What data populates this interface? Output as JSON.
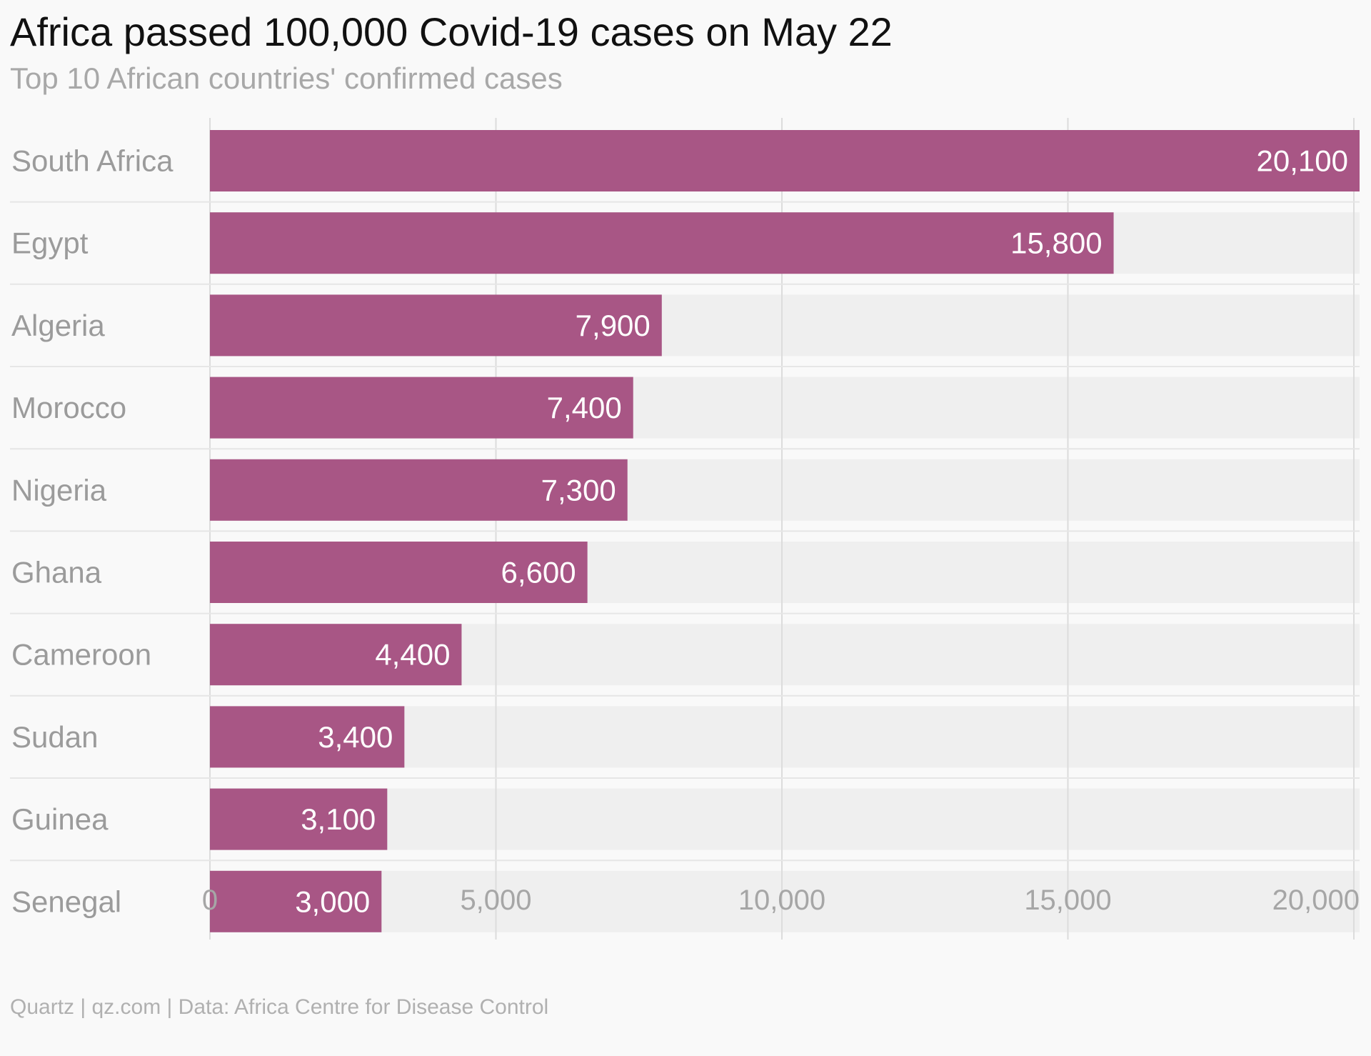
{
  "header": {
    "title": "Africa passed 100,000 Covid-19 cases on May 22",
    "subtitle": "Top 10 African countries' confirmed cases"
  },
  "footer": {
    "source": "Quartz | qz.com | Data: Africa Centre for Disease Control"
  },
  "colors": {
    "bar": "#a85685",
    "track": "#efefef",
    "grid": "#dcdcdc",
    "separator": "#e6e6e6"
  },
  "chart_data": {
    "type": "bar",
    "orientation": "horizontal",
    "title": "Africa passed 100,000 Covid-19 cases on May 22",
    "subtitle": "Top 10 African countries' confirmed cases",
    "categories": [
      "South Africa",
      "Egypt",
      "Algeria",
      "Morocco",
      "Nigeria",
      "Ghana",
      "Cameroon",
      "Sudan",
      "Guinea",
      "Senegal"
    ],
    "values": [
      20100,
      15800,
      7900,
      7400,
      7300,
      6600,
      4400,
      3400,
      3100,
      3000
    ],
    "value_labels": [
      "20,100",
      "15,800",
      "7,900",
      "7,400",
      "7,300",
      "6,600",
      "4,400",
      "3,400",
      "3,100",
      "3,000"
    ],
    "xlim": [
      0,
      20100
    ],
    "x_ticks": [
      0,
      5000,
      10000,
      15000,
      20000
    ],
    "x_tick_labels": [
      "0",
      "5,000",
      "10,000",
      "15,000",
      "20,000"
    ],
    "xlabel": "",
    "ylabel": "",
    "grid": true,
    "legend": "none"
  }
}
